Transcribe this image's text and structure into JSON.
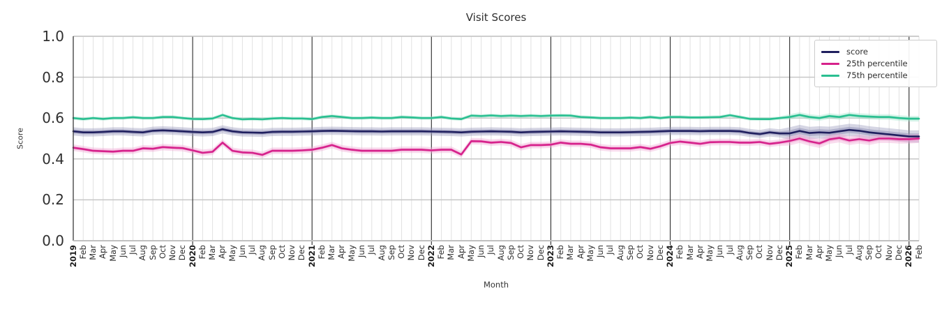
{
  "chart_data": {
    "type": "line",
    "title": "Visit Scores",
    "xlabel": "Month",
    "ylabel": "Score",
    "ylim": [
      0.0,
      1.0
    ],
    "yticks": [
      "0.0",
      "0.2",
      "0.4",
      "0.6",
      "0.8",
      "1.0"
    ],
    "grid": true,
    "legend_position": "upper right",
    "x_labels": [
      "2019",
      "Feb",
      "Mar",
      "Apr",
      "May",
      "Jun",
      "Jul",
      "Aug",
      "Sep",
      "Oct",
      "Nov",
      "Dec",
      "2020",
      "Feb",
      "Mar",
      "Apr",
      "May",
      "Jun",
      "Jul",
      "Aug",
      "Sep",
      "Oct",
      "Nov",
      "Dec",
      "2021",
      "Feb",
      "Mar",
      "Apr",
      "May",
      "Jun",
      "Jul",
      "Aug",
      "Sep",
      "Oct",
      "Nov",
      "Dec",
      "2022",
      "Feb",
      "Mar",
      "Apr",
      "May",
      "Jun",
      "Jul",
      "Aug",
      "Sep",
      "Oct",
      "Nov",
      "Dec",
      "2023",
      "Feb",
      "Mar",
      "Apr",
      "May",
      "Jun",
      "Jul",
      "Aug",
      "Sep",
      "Oct",
      "Nov",
      "Dec",
      "2024",
      "Feb",
      "Mar",
      "Apr",
      "May",
      "Jun",
      "Jul",
      "Aug",
      "Sep",
      "Oct",
      "Nov",
      "Dec",
      "2025",
      "Feb",
      "Mar",
      "Apr",
      "May",
      "Jun",
      "Jul",
      "Aug",
      "Sep",
      "Oct",
      "Nov",
      "Dec",
      "2026",
      "Feb"
    ],
    "year_line_indices": [
      12,
      24,
      36,
      48,
      60,
      72,
      84
    ],
    "band_widen_from_index": 72,
    "series": [
      {
        "name": "score",
        "color": "#1f1f5e",
        "band_color": "#9393b8",
        "band_halfwidth": 0.02,
        "band_halfwidth_late": 0.03,
        "values": [
          0.535,
          0.53,
          0.53,
          0.532,
          0.535,
          0.535,
          0.532,
          0.53,
          0.538,
          0.54,
          0.538,
          0.535,
          0.532,
          0.53,
          0.532,
          0.545,
          0.535,
          0.53,
          0.529,
          0.528,
          0.532,
          0.533,
          0.533,
          0.534,
          0.535,
          0.537,
          0.538,
          0.537,
          0.536,
          0.535,
          0.535,
          0.534,
          0.535,
          0.535,
          0.535,
          0.535,
          0.534,
          0.533,
          0.532,
          0.53,
          0.533,
          0.534,
          0.535,
          0.534,
          0.533,
          0.53,
          0.532,
          0.533,
          0.534,
          0.535,
          0.534,
          0.533,
          0.532,
          0.53,
          0.53,
          0.53,
          0.531,
          0.532,
          0.533,
          0.535,
          0.537,
          0.537,
          0.537,
          0.536,
          0.537,
          0.537,
          0.537,
          0.535,
          0.527,
          0.522,
          0.53,
          0.525,
          0.525,
          0.537,
          0.527,
          0.53,
          0.528,
          0.535,
          0.542,
          0.538,
          0.53,
          0.525,
          0.52,
          0.515,
          0.51,
          0.51
        ]
      },
      {
        "name": "25th percentile",
        "color": "#d6218b",
        "band_color": "#f0a3d2",
        "band_halfwidth": 0.016,
        "band_halfwidth_late": 0.022,
        "values": [
          0.455,
          0.448,
          0.44,
          0.438,
          0.436,
          0.44,
          0.44,
          0.452,
          0.45,
          0.458,
          0.455,
          0.453,
          0.442,
          0.43,
          0.435,
          0.48,
          0.44,
          0.432,
          0.43,
          0.42,
          0.44,
          0.44,
          0.44,
          0.442,
          0.445,
          0.455,
          0.468,
          0.452,
          0.445,
          0.44,
          0.44,
          0.44,
          0.44,
          0.445,
          0.445,
          0.445,
          0.442,
          0.445,
          0.445,
          0.422,
          0.487,
          0.486,
          0.48,
          0.483,
          0.478,
          0.457,
          0.468,
          0.468,
          0.47,
          0.48,
          0.474,
          0.474,
          0.47,
          0.457,
          0.452,
          0.452,
          0.452,
          0.458,
          0.45,
          0.462,
          0.478,
          0.485,
          0.48,
          0.474,
          0.482,
          0.483,
          0.483,
          0.48,
          0.48,
          0.483,
          0.474,
          0.48,
          0.488,
          0.5,
          0.486,
          0.476,
          0.496,
          0.503,
          0.49,
          0.497,
          0.49,
          0.5,
          0.5,
          0.497,
          0.497,
          0.5
        ]
      },
      {
        "name": "75th percentile",
        "color": "#2abf91",
        "band_color": "#9ce4cb",
        "band_halfwidth": 0.009,
        "band_halfwidth_late": 0.014,
        "values": [
          0.6,
          0.595,
          0.6,
          0.596,
          0.6,
          0.6,
          0.604,
          0.6,
          0.6,
          0.605,
          0.605,
          0.6,
          0.596,
          0.595,
          0.598,
          0.615,
          0.6,
          0.594,
          0.596,
          0.594,
          0.598,
          0.6,
          0.598,
          0.598,
          0.595,
          0.605,
          0.61,
          0.605,
          0.6,
          0.6,
          0.602,
          0.6,
          0.6,
          0.605,
          0.603,
          0.6,
          0.6,
          0.605,
          0.598,
          0.595,
          0.612,
          0.61,
          0.613,
          0.61,
          0.612,
          0.61,
          0.612,
          0.61,
          0.612,
          0.613,
          0.612,
          0.605,
          0.603,
          0.6,
          0.6,
          0.6,
          0.602,
          0.6,
          0.605,
          0.6,
          0.605,
          0.605,
          0.603,
          0.603,
          0.604,
          0.605,
          0.614,
          0.605,
          0.596,
          0.595,
          0.595,
          0.6,
          0.605,
          0.615,
          0.605,
          0.6,
          0.61,
          0.605,
          0.615,
          0.61,
          0.607,
          0.605,
          0.605,
          0.6,
          0.597,
          0.597
        ]
      }
    ],
    "style_colors": {
      "grid_minor": "#e1e1e1",
      "grid_major": "#c7c7c7",
      "year_line": "#3a3a3a",
      "spine_left": "#3a3a3a",
      "spine_bottom": "#c0c0c0",
      "text": "#2e2e2e"
    }
  }
}
